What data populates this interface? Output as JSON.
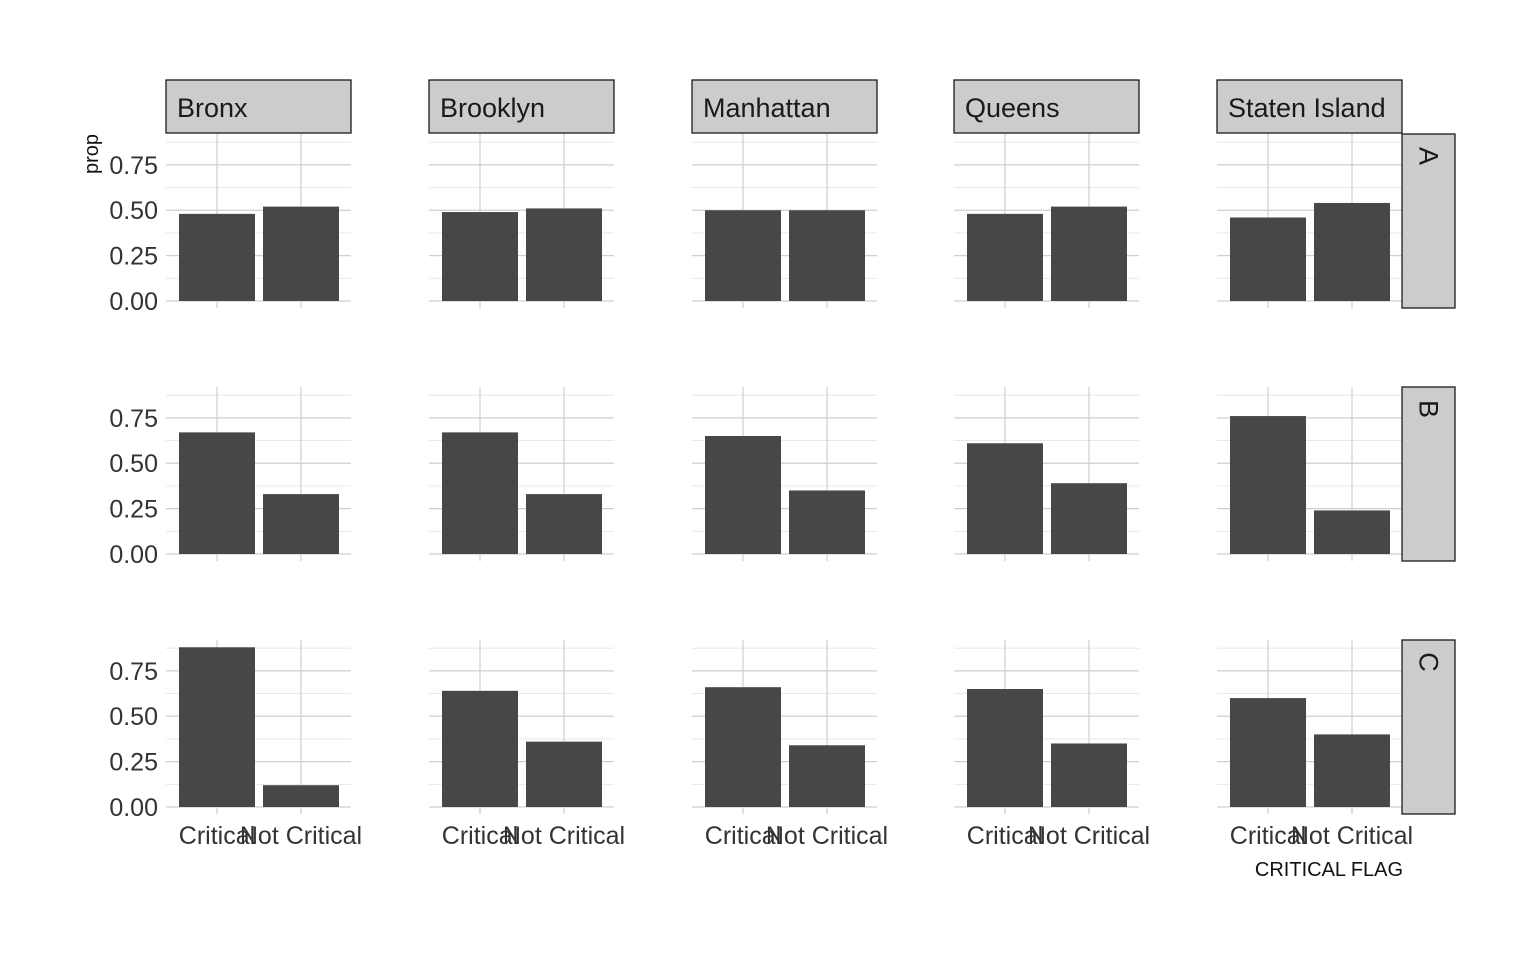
{
  "chart_data": {
    "type": "bar",
    "layout": "facet_grid",
    "column_facets": [
      "Bronx",
      "Brooklyn",
      "Manhattan",
      "Queens",
      "Staten Island"
    ],
    "row_facets": [
      "A",
      "B",
      "C"
    ],
    "categories": [
      "Critical",
      "Not Critical"
    ],
    "xlabel": "CRITICAL FLAG",
    "ylabel": "prop",
    "ylim": [
      0,
      0.92
    ],
    "yticks": [
      0,
      0.25,
      0.5,
      0.75
    ],
    "ytick_labels": [
      "0.00",
      "0.25",
      "0.50",
      "0.75"
    ],
    "grid": true,
    "panels": [
      {
        "row": "A",
        "col": "Bronx",
        "values": [
          0.48,
          0.52
        ]
      },
      {
        "row": "A",
        "col": "Brooklyn",
        "values": [
          0.49,
          0.51
        ]
      },
      {
        "row": "A",
        "col": "Manhattan",
        "values": [
          0.5,
          0.5
        ]
      },
      {
        "row": "A",
        "col": "Queens",
        "values": [
          0.48,
          0.52
        ]
      },
      {
        "row": "A",
        "col": "Staten Island",
        "values": [
          0.46,
          0.54
        ]
      },
      {
        "row": "B",
        "col": "Bronx",
        "values": [
          0.67,
          0.33
        ]
      },
      {
        "row": "B",
        "col": "Brooklyn",
        "values": [
          0.67,
          0.33
        ]
      },
      {
        "row": "B",
        "col": "Manhattan",
        "values": [
          0.65,
          0.35
        ]
      },
      {
        "row": "B",
        "col": "Queens",
        "values": [
          0.61,
          0.39
        ]
      },
      {
        "row": "B",
        "col": "Staten Island",
        "values": [
          0.76,
          0.24
        ]
      },
      {
        "row": "C",
        "col": "Bronx",
        "values": [
          0.88,
          0.12
        ]
      },
      {
        "row": "C",
        "col": "Brooklyn",
        "values": [
          0.64,
          0.36
        ]
      },
      {
        "row": "C",
        "col": "Manhattan",
        "values": [
          0.66,
          0.34
        ]
      },
      {
        "row": "C",
        "col": "Queens",
        "values": [
          0.65,
          0.35
        ]
      },
      {
        "row": "C",
        "col": "Staten Island",
        "values": [
          0.6,
          0.4
        ]
      }
    ]
  },
  "colors": {
    "bar": "#474747",
    "strip_fill": "#cccccc",
    "grid": "#cfcfcf"
  }
}
